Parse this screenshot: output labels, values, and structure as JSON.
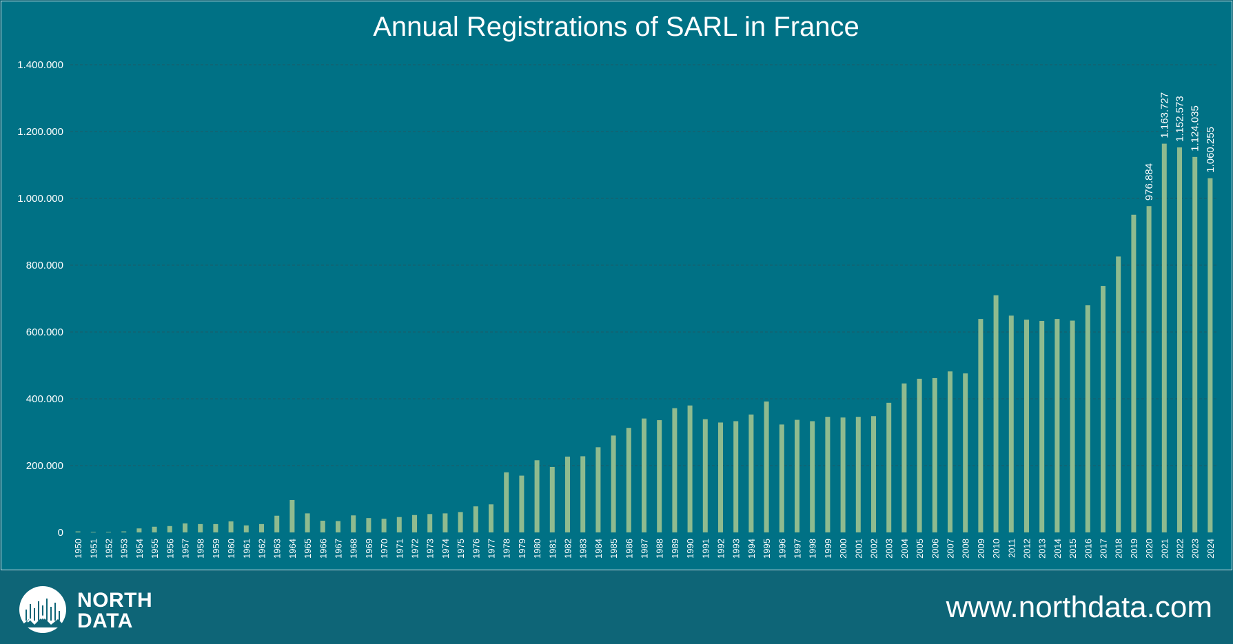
{
  "colors": {
    "background": "#007185",
    "footer": "#0e6577",
    "bar": "#8fbb8f",
    "text": "#ffffff"
  },
  "chart_data": {
    "type": "bar",
    "title": "Annual Registrations of SARL in France",
    "xlabel": "",
    "ylabel": "",
    "ylim": [
      0,
      1400000
    ],
    "grid": true,
    "legend": "none",
    "y_ticks": [
      "0",
      "200.000",
      "400.000",
      "600.000",
      "800.000",
      "1.000.000",
      "1.200.000",
      "1.400.000"
    ],
    "categories": [
      "1950",
      "1951",
      "1952",
      "1953",
      "1954",
      "1955",
      "1956",
      "1957",
      "1958",
      "1959",
      "1960",
      "1961",
      "1962",
      "1963",
      "1964",
      "1965",
      "1966",
      "1967",
      "1968",
      "1969",
      "1970",
      "1971",
      "1972",
      "1973",
      "1974",
      "1975",
      "1976",
      "1977",
      "1978",
      "1979",
      "1980",
      "1981",
      "1982",
      "1983",
      "1984",
      "1985",
      "1986",
      "1987",
      "1988",
      "1989",
      "1990",
      "1991",
      "1992",
      "1993",
      "1994",
      "1995",
      "1996",
      "1997",
      "1998",
      "1999",
      "2000",
      "2001",
      "2002",
      "2003",
      "2004",
      "2005",
      "2006",
      "2007",
      "2008",
      "2009",
      "2010",
      "2011",
      "2012",
      "2013",
      "2014",
      "2015",
      "2016",
      "2017",
      "2018",
      "2019",
      "2020",
      "2021",
      "2022",
      "2023",
      "2024"
    ],
    "values": [
      3000,
      2000,
      2000,
      3000,
      12000,
      17000,
      19000,
      27000,
      25000,
      25000,
      33000,
      21000,
      25000,
      50000,
      97000,
      57000,
      35000,
      34000,
      51000,
      43000,
      41000,
      46000,
      52000,
      55000,
      57000,
      61000,
      78000,
      84000,
      180000,
      170000,
      216000,
      196000,
      227000,
      228000,
      255000,
      290000,
      313000,
      341000,
      336000,
      372000,
      380000,
      339000,
      329000,
      333000,
      353000,
      392000,
      323000,
      337000,
      333000,
      346000,
      344000,
      346000,
      348000,
      388000,
      446000,
      460000,
      462000,
      482000,
      476000,
      639000,
      710000,
      649000,
      637000,
      633000,
      639000,
      634000,
      680000,
      738000,
      826000,
      951000,
      976884,
      1163727,
      1152573,
      1124035,
      1060255
    ],
    "data_labels": [
      {
        "category": "2020",
        "text": "976.884"
      },
      {
        "category": "2021",
        "text": "1.163.727"
      },
      {
        "category": "2022",
        "text": "1.152.573"
      },
      {
        "category": "2023",
        "text": "1.124.035"
      },
      {
        "category": "2024",
        "text": "1.060.255"
      }
    ]
  },
  "footer": {
    "logo_line1": "NORTH",
    "logo_line2": "DATA",
    "website": "www.northdata.com"
  }
}
